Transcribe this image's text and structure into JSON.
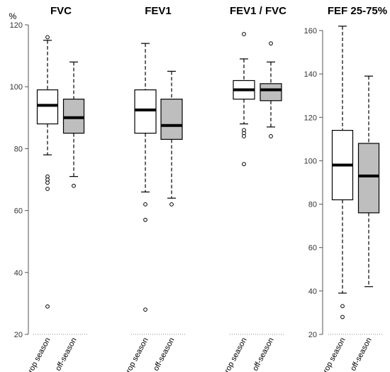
{
  "y_unit": "%",
  "colors": {
    "crop_season_fill": "#ffffff",
    "off_season_fill": "#bebebe",
    "stroke": "#000000",
    "axis": "#555555"
  },
  "chart_data": [
    {
      "type": "box",
      "title": "FVC",
      "ylim": [
        20,
        120
      ],
      "yticks": [
        20,
        40,
        60,
        80,
        100,
        120
      ],
      "show_yaxis": true,
      "categories": [
        "crop season",
        "off-season"
      ],
      "boxes": [
        {
          "category": "crop season",
          "whisker_low": 78,
          "q1": 88,
          "median": 94,
          "q3": 99,
          "whisker_high": 115,
          "outliers": [
            116,
            71,
            70,
            69,
            67,
            29
          ]
        },
        {
          "category": "off-season",
          "whisker_low": 71,
          "q1": 85,
          "median": 90,
          "q3": 96,
          "whisker_high": 108,
          "outliers": [
            68
          ]
        }
      ]
    },
    {
      "type": "box",
      "title": "FEV1",
      "ylim": [
        20,
        120
      ],
      "yticks": [],
      "show_yaxis": false,
      "categories": [
        "crop season",
        "off-season"
      ],
      "boxes": [
        {
          "category": "crop season",
          "whisker_low": 66,
          "q1": 85,
          "median": 92.5,
          "q3": 99,
          "whisker_high": 114,
          "outliers": [
            62,
            57,
            28
          ]
        },
        {
          "category": "off-season",
          "whisker_low": 64,
          "q1": 83,
          "median": 87.5,
          "q3": 96,
          "whisker_high": 105,
          "outliers": [
            62
          ]
        }
      ]
    },
    {
      "type": "box",
      "title": "FEV1 / FVC",
      "ylim": [
        20,
        120
      ],
      "yticks": [],
      "show_yaxis": false,
      "categories": [
        "crop season",
        "off-season"
      ],
      "boxes": [
        {
          "category": "crop season",
          "whisker_low": 88,
          "q1": 96,
          "median": 99,
          "q3": 102,
          "whisker_high": 109,
          "outliers": [
            117,
            86,
            85,
            84,
            75
          ]
        },
        {
          "category": "off-season",
          "whisker_low": 87,
          "q1": 95.5,
          "median": 99,
          "q3": 101,
          "whisker_high": 108,
          "outliers": [
            114,
            84
          ]
        }
      ]
    },
    {
      "type": "box",
      "title": "FEF 25-75%",
      "ylim": [
        20,
        165
      ],
      "yticks": [
        20,
        40,
        60,
        80,
        100,
        120,
        140,
        160
      ],
      "show_yaxis": true,
      "categories": [
        "crop season",
        "off-season"
      ],
      "boxes": [
        {
          "category": "crop season",
          "whisker_low": 39,
          "q1": 82,
          "median": 98,
          "q3": 114,
          "whisker_high": 162,
          "outliers": [
            33,
            28
          ]
        },
        {
          "category": "off-season",
          "whisker_low": 42,
          "q1": 76,
          "median": 93,
          "q3": 108,
          "whisker_high": 139,
          "outliers": []
        }
      ]
    }
  ]
}
